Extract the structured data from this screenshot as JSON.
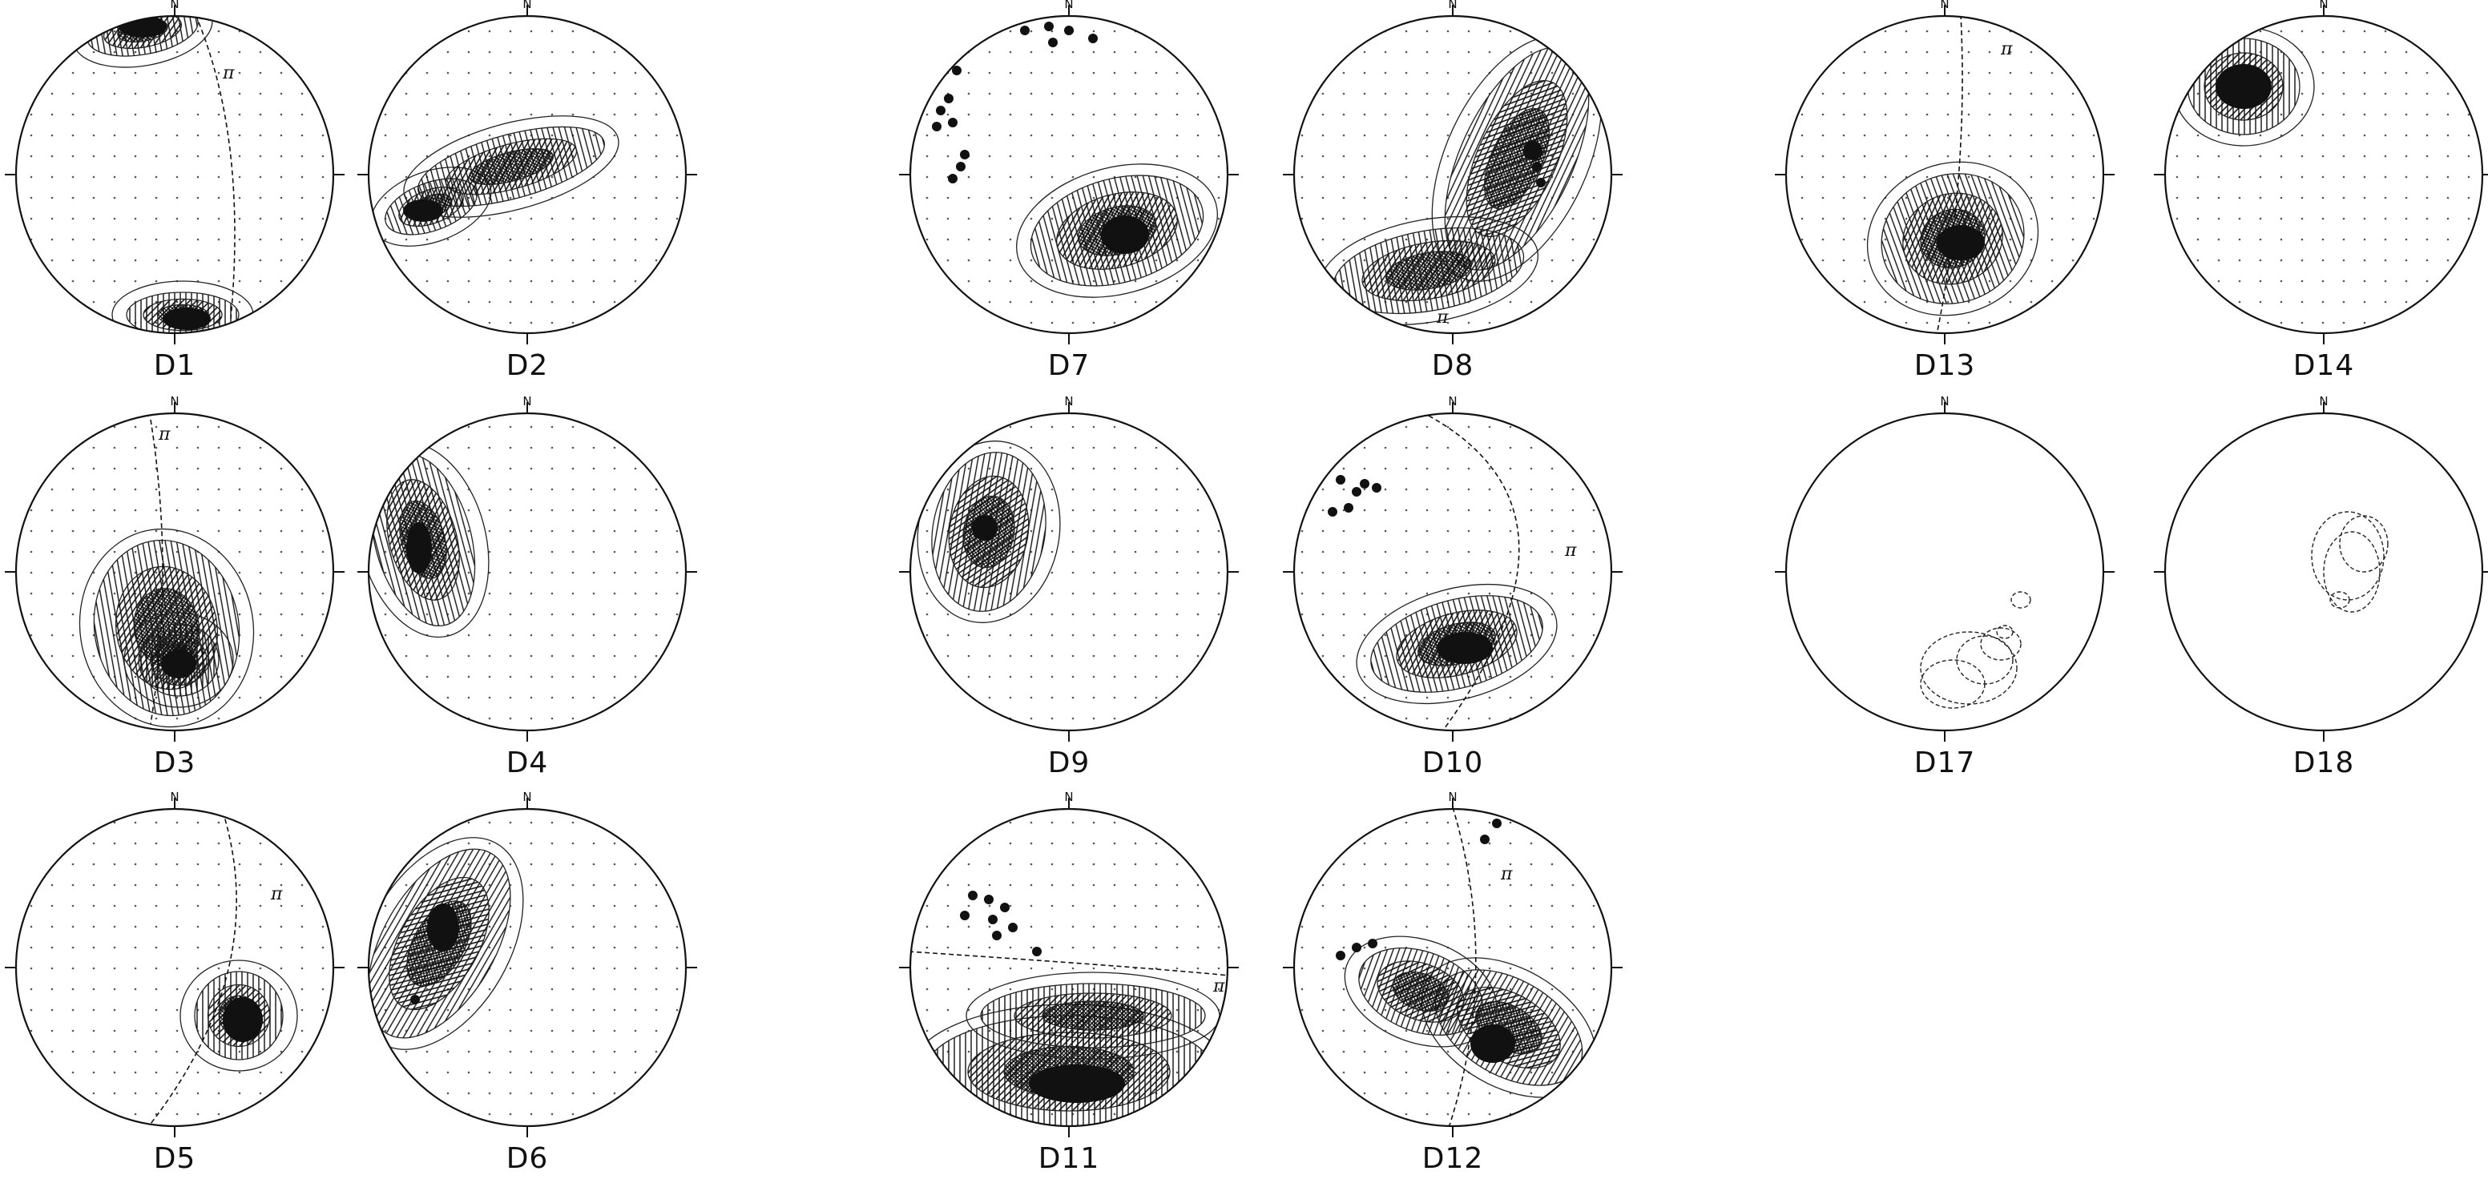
{
  "north_label": "N",
  "pi_label": "π",
  "diagrams": [
    {
      "id": "D1",
      "label": "D1",
      "pi": true
    },
    {
      "id": "D2",
      "label": "D2",
      "pi": false
    },
    {
      "id": "D3",
      "label": "D3",
      "pi": true
    },
    {
      "id": "D4",
      "label": "D4",
      "pi": false
    },
    {
      "id": "D5",
      "label": "D5",
      "pi": true
    },
    {
      "id": "D6",
      "label": "D6",
      "pi": false
    },
    {
      "id": "D7",
      "label": "D7",
      "pi": false
    },
    {
      "id": "D8",
      "label": "D8",
      "pi": true
    },
    {
      "id": "D9",
      "label": "D9",
      "pi": false
    },
    {
      "id": "D10",
      "label": "D10",
      "pi": true
    },
    {
      "id": "D11",
      "label": "D11",
      "pi": true
    },
    {
      "id": "D12",
      "label": "D12",
      "pi": true
    },
    {
      "id": "D13",
      "label": "D13",
      "pi": true
    },
    {
      "id": "D14",
      "label": "D14",
      "pi": false
    },
    {
      "id": "D17",
      "label": "D17",
      "pi": false
    },
    {
      "id": "D18",
      "label": "D18",
      "pi": false
    }
  ]
}
